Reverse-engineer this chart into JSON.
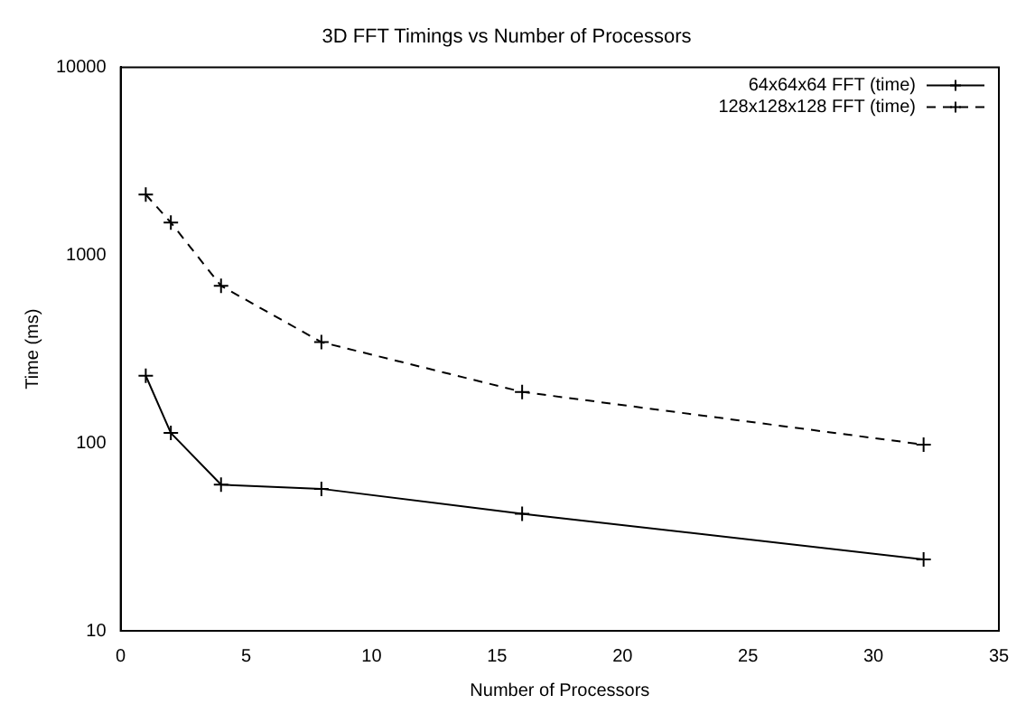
{
  "chart_data": {
    "type": "line",
    "title": "3D FFT Timings vs Number of Processors",
    "xlabel": "Number of Processors",
    "ylabel": "Time (ms)",
    "x": [
      1,
      2,
      4,
      8,
      16,
      32
    ],
    "series": [
      {
        "name": "64x64x64 FFT (time)",
        "color": "#000000",
        "values": [
          228,
          113,
          60,
          57,
          42,
          24
        ],
        "line_style": "solid"
      },
      {
        "name": "128x128x128 FFT (time)",
        "color": "#000000",
        "values": [
          2100,
          1490,
          686,
          344,
          187,
          98
        ],
        "line_style": "dashed"
      }
    ],
    "xlim": [
      0,
      35
    ],
    "xticks": [
      0,
      5,
      10,
      15,
      20,
      25,
      30,
      35
    ],
    "ylim": [
      10,
      10000
    ],
    "yticks": [
      10,
      100,
      1000,
      10000
    ],
    "log": "y",
    "grid": false,
    "legend": "top right",
    "marker": "cross"
  }
}
